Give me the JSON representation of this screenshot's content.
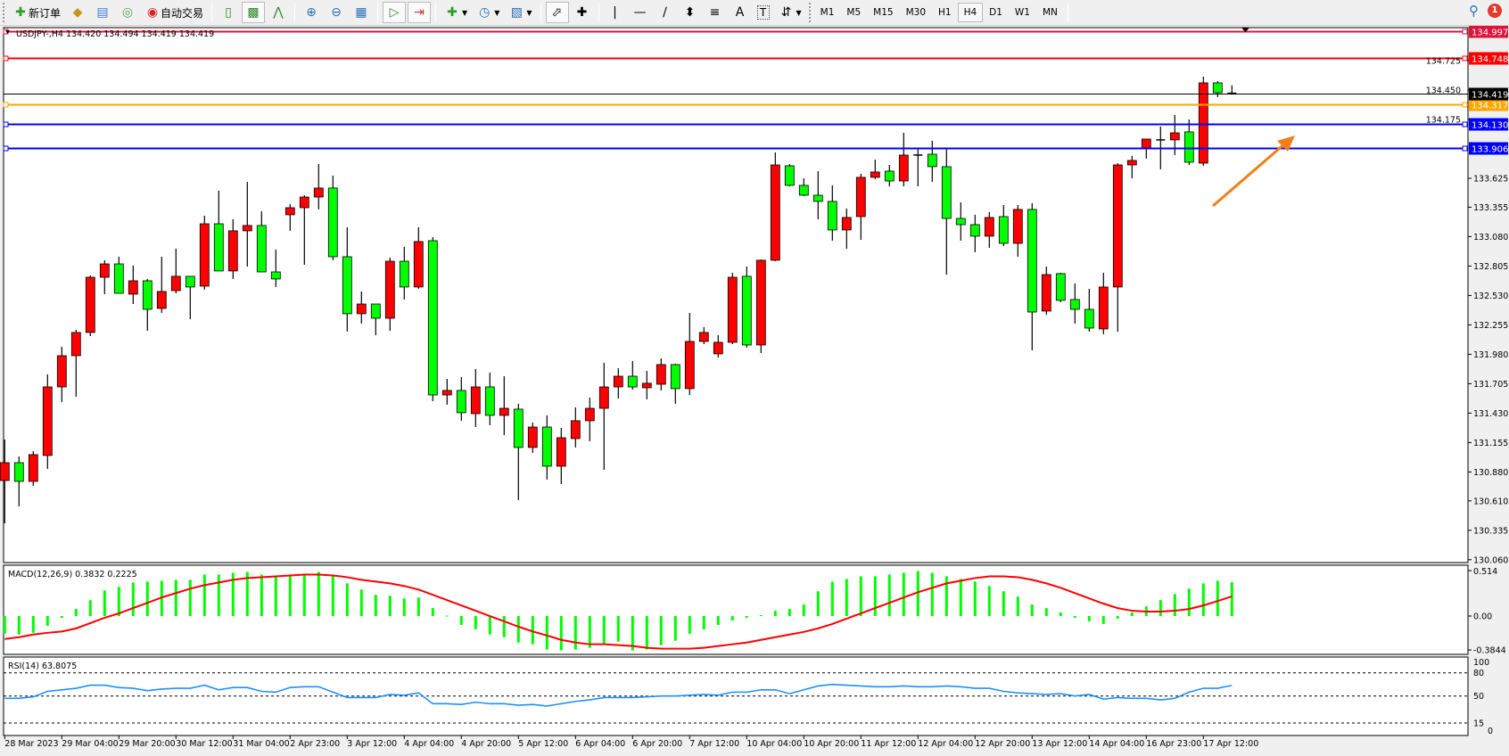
{
  "toolbar": {
    "new_order_label": "新订单",
    "auto_trading_label": "自动交易",
    "timeframes": [
      "M1",
      "M5",
      "M15",
      "M30",
      "H1",
      "H4",
      "D1",
      "W1",
      "MN"
    ],
    "active_timeframe": "H4",
    "notification_count": "1"
  },
  "chart": {
    "header": "USDJPY-,H4  134.420 134.494 134.419 134.419",
    "bull_color": "#ff0000",
    "bear_color": "#00ff00",
    "macd_label": "MACD(12,26,9) 0.3832 0.2225",
    "rsi_label": "RSI(14) 63.8075"
  },
  "chart_data": {
    "type": "candlestick",
    "symbol": "USDJPY-",
    "timeframe": "H4",
    "ohlc_fields": [
      "open",
      "high",
      "low",
      "close"
    ],
    "candles": [
      [
        130.8,
        131.183,
        130.4,
        130.967
      ],
      [
        130.967,
        131.025,
        130.559,
        130.792
      ],
      [
        130.792,
        131.075,
        130.75,
        131.042
      ],
      [
        131.034,
        131.792,
        130.909,
        131.675
      ],
      [
        131.675,
        132.05,
        131.534,
        131.967
      ],
      [
        131.967,
        132.209,
        131.584,
        132.184
      ],
      [
        132.184,
        132.717,
        132.15,
        132.7
      ],
      [
        132.7,
        132.859,
        132.542,
        132.825
      ],
      [
        132.825,
        132.892,
        132.55,
        132.55
      ],
      [
        132.542,
        132.809,
        132.45,
        132.667
      ],
      [
        132.667,
        132.684,
        132.2,
        132.4
      ],
      [
        132.409,
        132.892,
        132.367,
        132.567
      ],
      [
        132.575,
        132.967,
        132.55,
        132.709
      ],
      [
        132.709,
        132.709,
        132.309,
        132.609
      ],
      [
        132.617,
        133.275,
        132.584,
        133.2
      ],
      [
        133.2,
        133.509,
        132.759,
        132.759
      ],
      [
        132.759,
        133.242,
        132.684,
        133.134
      ],
      [
        133.134,
        133.592,
        132.8,
        133.184
      ],
      [
        133.184,
        133.317,
        132.75,
        132.75
      ],
      [
        132.75,
        132.959,
        132.609,
        132.684
      ],
      [
        133.284,
        133.384,
        133.134,
        133.35
      ],
      [
        133.35,
        133.467,
        132.817,
        133.45
      ],
      [
        133.45,
        133.759,
        133.334,
        133.534
      ],
      [
        133.534,
        133.65,
        132.859,
        132.892
      ],
      [
        132.892,
        133.167,
        132.192,
        132.359
      ],
      [
        132.359,
        132.567,
        132.267,
        132.45
      ],
      [
        132.45,
        132.45,
        132.159,
        132.317
      ],
      [
        132.317,
        132.884,
        132.2,
        132.85
      ],
      [
        132.85,
        132.984,
        132.492,
        132.609
      ],
      [
        132.609,
        133.167,
        132.592,
        133.034
      ],
      [
        133.042,
        133.075,
        131.542,
        131.6
      ],
      [
        131.6,
        131.75,
        131.509,
        131.642
      ],
      [
        131.642,
        131.767,
        131.359,
        131.434
      ],
      [
        131.425,
        131.842,
        131.3,
        131.675
      ],
      [
        131.675,
        131.809,
        131.317,
        131.409
      ],
      [
        131.409,
        131.775,
        131.225,
        131.475
      ],
      [
        131.467,
        131.517,
        130.617,
        131.109
      ],
      [
        131.109,
        131.342,
        131.059,
        131.3
      ],
      [
        131.3,
        131.409,
        130.809,
        130.934
      ],
      [
        130.934,
        131.292,
        130.767,
        131.2
      ],
      [
        131.192,
        131.484,
        131.109,
        131.359
      ],
      [
        131.359,
        131.575,
        131.167,
        131.475
      ],
      [
        131.475,
        131.9,
        130.9,
        131.675
      ],
      [
        131.675,
        131.85,
        131.567,
        131.775
      ],
      [
        131.775,
        131.917,
        131.65,
        131.675
      ],
      [
        131.667,
        131.825,
        131.559,
        131.709
      ],
      [
        131.7,
        131.942,
        131.642,
        131.884
      ],
      [
        131.884,
        131.892,
        131.517,
        131.659
      ],
      [
        131.659,
        132.367,
        131.6,
        132.1
      ],
      [
        132.1,
        132.234,
        132.075,
        132.184
      ],
      [
        131.984,
        132.159,
        131.95,
        132.092
      ],
      [
        132.092,
        132.742,
        132.075,
        132.7
      ],
      [
        132.709,
        132.8,
        132.042,
        132.067
      ],
      [
        132.067,
        132.867,
        131.992,
        132.859
      ],
      [
        132.859,
        133.867,
        132.85,
        133.75
      ],
      [
        133.742,
        133.759,
        133.55,
        133.559
      ],
      [
        133.559,
        133.625,
        133.459,
        133.467
      ],
      [
        133.467,
        133.692,
        133.242,
        133.409
      ],
      [
        133.409,
        133.559,
        133.042,
        133.142
      ],
      [
        133.142,
        133.342,
        132.967,
        133.259
      ],
      [
        133.267,
        133.667,
        133.05,
        133.634
      ],
      [
        133.634,
        133.8,
        133.617,
        133.684
      ],
      [
        133.692,
        133.75,
        133.55,
        133.6
      ],
      [
        133.6,
        134.05,
        133.55,
        133.842
      ],
      [
        133.842,
        133.909,
        133.55,
        133.842
      ],
      [
        133.85,
        133.975,
        133.592,
        133.734
      ],
      [
        133.734,
        133.9,
        132.725,
        133.25
      ],
      [
        133.25,
        133.4,
        133.042,
        133.192
      ],
      [
        133.192,
        133.284,
        132.934,
        133.084
      ],
      [
        133.084,
        133.309,
        132.975,
        133.259
      ],
      [
        133.267,
        133.375,
        132.992,
        133.017
      ],
      [
        133.017,
        133.375,
        132.892,
        133.334
      ],
      [
        133.334,
        133.392,
        132.017,
        132.375
      ],
      [
        132.384,
        132.8,
        132.35,
        132.725
      ],
      [
        132.734,
        132.742,
        132.467,
        132.484
      ],
      [
        132.492,
        132.642,
        132.267,
        132.4
      ],
      [
        132.4,
        132.592,
        132.192,
        132.225
      ],
      [
        132.217,
        132.742,
        132.167,
        132.609
      ],
      [
        132.609,
        133.767,
        132.192,
        133.75
      ],
      [
        133.75,
        133.834,
        133.625,
        133.792
      ],
      [
        133.9,
        133.992,
        133.809,
        133.992
      ],
      [
        133.984,
        134.109,
        133.709,
        133.984
      ],
      [
        133.984,
        134.217,
        133.842,
        134.05
      ],
      [
        134.059,
        134.175,
        133.75,
        133.775
      ],
      [
        133.767,
        134.575,
        133.742,
        134.517
      ],
      [
        134.517,
        134.534,
        134.384,
        134.425
      ],
      [
        134.42,
        134.494,
        134.419,
        134.419
      ]
    ],
    "price_ticks": [
      "134.725",
      "134.450",
      "134.175",
      "133.625",
      "133.355",
      "133.080",
      "132.805",
      "132.530",
      "132.255",
      "131.980",
      "131.705",
      "131.430",
      "131.155",
      "130.880",
      "130.610",
      "130.335",
      "130.060"
    ],
    "ylim": [
      130.06,
      134.997
    ],
    "horizontal_lines": [
      {
        "price": "134.997",
        "color": "#dc143c"
      },
      {
        "price": "134.748",
        "color": "#ff0000"
      },
      {
        "price": "134.317",
        "color": "#ffa500"
      },
      {
        "price": "134.130",
        "color": "#0000ff"
      },
      {
        "price": "133.906",
        "color": "#0000ff"
      }
    ],
    "bid_line": {
      "price": "134.419",
      "color": "#000000"
    },
    "annotation_arrow": {
      "color": "#f07f1a",
      "direction": "up-right"
    },
    "time_labels": [
      "28 Mar 2023",
      "29 Mar 04:00",
      "29 Mar 20:00",
      "30 Mar 12:00",
      "31 Mar 04:00",
      "2 Apr 23:00",
      "3 Apr 12:00",
      "4 Apr 04:00",
      "4 Apr 20:00",
      "5 Apr 12:00",
      "6 Apr 04:00",
      "6 Apr 20:00",
      "7 Apr 12:00",
      "10 Apr 04:00",
      "10 Apr 20:00",
      "11 Apr 12:00",
      "12 Apr 04:00",
      "12 Apr 20:00",
      "13 Apr 12:00",
      "14 Apr 04:00",
      "16 Apr 23:00",
      "17 Apr 12:00"
    ],
    "macd": {
      "ticks": [
        "0.514",
        "0.00",
        "-0.3844"
      ],
      "histogram_color": "#00ff00",
      "signal_color": "#ff0000",
      "histogram": [
        -0.2,
        -0.21,
        -0.19,
        -0.11,
        -0.02,
        0.08,
        0.18,
        0.29,
        0.33,
        0.38,
        0.39,
        0.4,
        0.41,
        0.41,
        0.47,
        0.47,
        0.49,
        0.5,
        0.47,
        0.44,
        0.45,
        0.48,
        0.5,
        0.46,
        0.37,
        0.3,
        0.24,
        0.23,
        0.2,
        0.21,
        0.09,
        0.005,
        -0.1,
        -0.15,
        -0.21,
        -0.24,
        -0.3,
        -0.32,
        -0.38,
        -0.39,
        -0.38,
        -0.36,
        -0.31,
        -0.29,
        -0.39,
        -0.38,
        -0.33,
        -0.28,
        -0.2,
        -0.15,
        -0.1,
        -0.05,
        -0.02,
        0.01,
        0.06,
        0.08,
        0.13,
        0.28,
        0.39,
        0.42,
        0.45,
        0.45,
        0.47,
        0.49,
        0.51,
        0.49,
        0.45,
        0.42,
        0.39,
        0.34,
        0.28,
        0.22,
        0.13,
        0.09,
        0.04,
        -0.02,
        -0.06,
        -0.09,
        -0.03,
        0.04,
        0.11,
        0.18,
        0.25,
        0.31,
        0.37,
        0.4,
        0.3832
      ],
      "signal": [
        -0.26,
        -0.24,
        -0.21,
        -0.19,
        -0.175,
        -0.14,
        -0.08,
        -0.02,
        0.03,
        0.09,
        0.15,
        0.21,
        0.26,
        0.31,
        0.35,
        0.38,
        0.41,
        0.43,
        0.44,
        0.45,
        0.46,
        0.47,
        0.47,
        0.46,
        0.44,
        0.41,
        0.39,
        0.37,
        0.34,
        0.3,
        0.24,
        0.18,
        0.12,
        0.06,
        0.0,
        -0.06,
        -0.12,
        -0.175,
        -0.22,
        -0.27,
        -0.3,
        -0.32,
        -0.32,
        -0.33,
        -0.34,
        -0.36,
        -0.37,
        -0.37,
        -0.37,
        -0.36,
        -0.34,
        -0.32,
        -0.3,
        -0.27,
        -0.24,
        -0.21,
        -0.18,
        -0.14,
        -0.09,
        -0.03,
        0.03,
        0.09,
        0.15,
        0.21,
        0.27,
        0.32,
        0.37,
        0.4,
        0.43,
        0.45,
        0.45,
        0.44,
        0.41,
        0.37,
        0.32,
        0.26,
        0.2,
        0.14,
        0.09,
        0.06,
        0.05,
        0.05,
        0.06,
        0.08,
        0.12,
        0.17,
        0.2225
      ]
    },
    "rsi": {
      "ticks": [
        "100",
        "80",
        "50",
        "15",
        "0"
      ],
      "levels": [
        80,
        50,
        15
      ],
      "color": "#1e90ff",
      "values": [
        47,
        47,
        49,
        56,
        58,
        60,
        64,
        64,
        61,
        60,
        57,
        59,
        60,
        60,
        64,
        58,
        61,
        61,
        56,
        55,
        61,
        62,
        62,
        55,
        48,
        48,
        48,
        52,
        51,
        54,
        40,
        40,
        39,
        42,
        40,
        40,
        38,
        39,
        37,
        40,
        43,
        45,
        48,
        48,
        48,
        49,
        50,
        50,
        51,
        52,
        51,
        55,
        55,
        58,
        58,
        53,
        58,
        63,
        65,
        64,
        63,
        62,
        62,
        63,
        62,
        62,
        63,
        62,
        60,
        60,
        56,
        54,
        53,
        52,
        53,
        50,
        52,
        46,
        48,
        47,
        47,
        45,
        47,
        55,
        60,
        60,
        63.8075
      ]
    }
  }
}
